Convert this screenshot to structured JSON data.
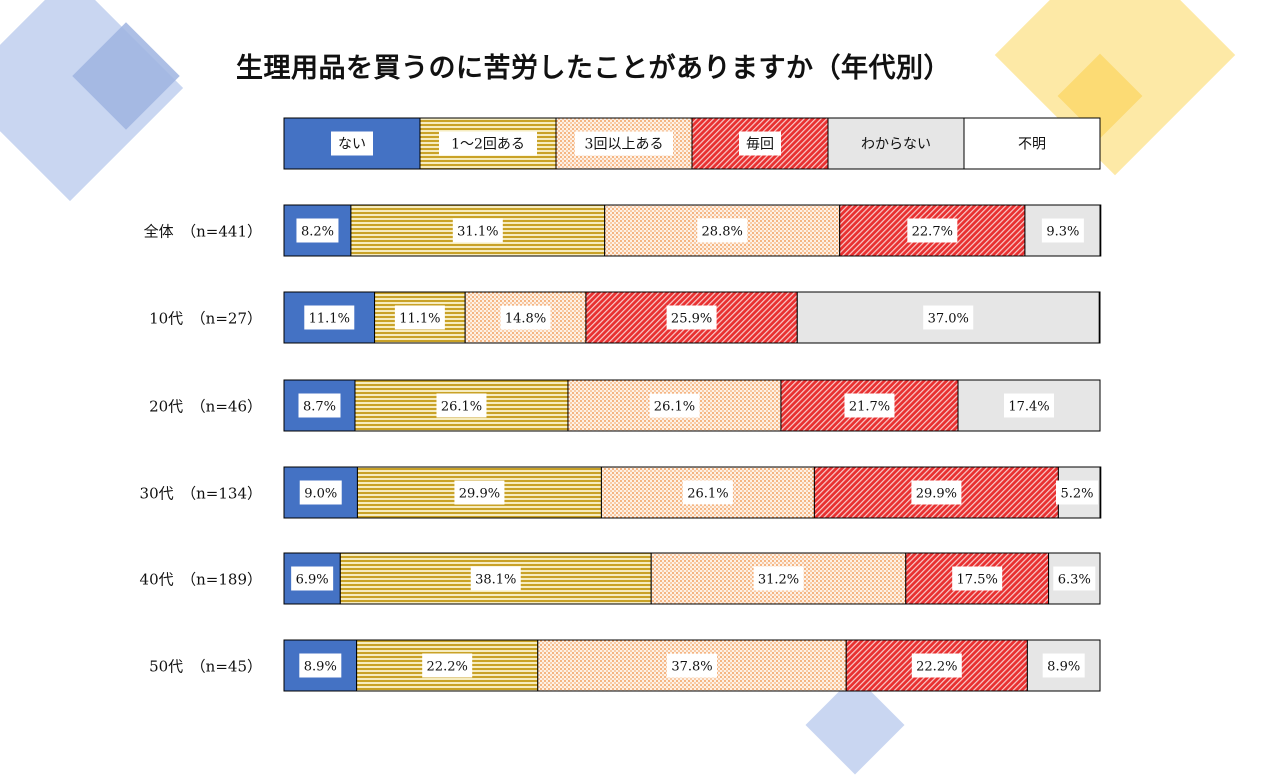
{
  "title": "生理用品を買うのに苦労したことがありますか（年代別）",
  "colors": {
    "deco_blue": "#9fb4e0",
    "deco_blue_light": "#c9d6f1",
    "deco_yellow": "#fde9a6",
    "deco_yellow_dark": "#fbd768"
  },
  "chart_data": {
    "type": "bar",
    "orientation": "horizontal",
    "stacked": "100%",
    "title": "生理用品を買うのに苦労したことがありますか（年代別）",
    "xlim": [
      0,
      100
    ],
    "legend_placement": "top",
    "series": [
      {
        "name": "ない",
        "color": "#4472c4",
        "pattern": "solid",
        "values": [
          8.2,
          11.1,
          8.7,
          9.0,
          6.9,
          8.9
        ]
      },
      {
        "name": "1～2回ある",
        "color": "#c9a227",
        "pattern": "horizontal-stripes",
        "values": [
          31.1,
          11.1,
          26.1,
          29.9,
          38.1,
          22.2
        ]
      },
      {
        "name": "3回以上ある",
        "color": "#f4a460",
        "pattern": "dots",
        "values": [
          28.8,
          14.8,
          26.1,
          26.1,
          31.2,
          37.8
        ]
      },
      {
        "name": "毎回",
        "color": "#e02020",
        "pattern": "diagonal-hatch",
        "values": [
          22.7,
          25.9,
          21.7,
          29.9,
          17.5,
          22.2
        ]
      },
      {
        "name": "わからない",
        "color": "#e6e6e6",
        "pattern": "solid",
        "values": [
          9.3,
          37.0,
          17.4,
          5.2,
          6.3,
          8.9
        ]
      },
      {
        "name": "不明",
        "color": "#ffffff",
        "pattern": "solid",
        "values": [
          0,
          0,
          0,
          0,
          0,
          0
        ]
      }
    ],
    "categories": [
      "全体　（n=441）",
      "10代　（n=27）",
      "20代　（n=46）",
      "30代　（n=134）",
      "40代　（n=189）",
      "50代　（n=45）"
    ],
    "data_labels": [
      [
        "8.2%",
        "31.1%",
        "28.8%",
        "22.7%",
        "9.3%"
      ],
      [
        "11.1%",
        "11.1%",
        "14.8%",
        "25.9%",
        "37.0%"
      ],
      [
        "8.7%",
        "26.1%",
        "26.1%",
        "21.7%",
        "17.4%"
      ],
      [
        "9.0%",
        "29.9%",
        "26.1%",
        "29.9%",
        "5.2%"
      ],
      [
        "6.9%",
        "38.1%",
        "31.2%",
        "17.5%",
        "6.3%"
      ],
      [
        "8.9%",
        "22.2%",
        "37.8%",
        "22.2%",
        "8.9%"
      ]
    ]
  }
}
